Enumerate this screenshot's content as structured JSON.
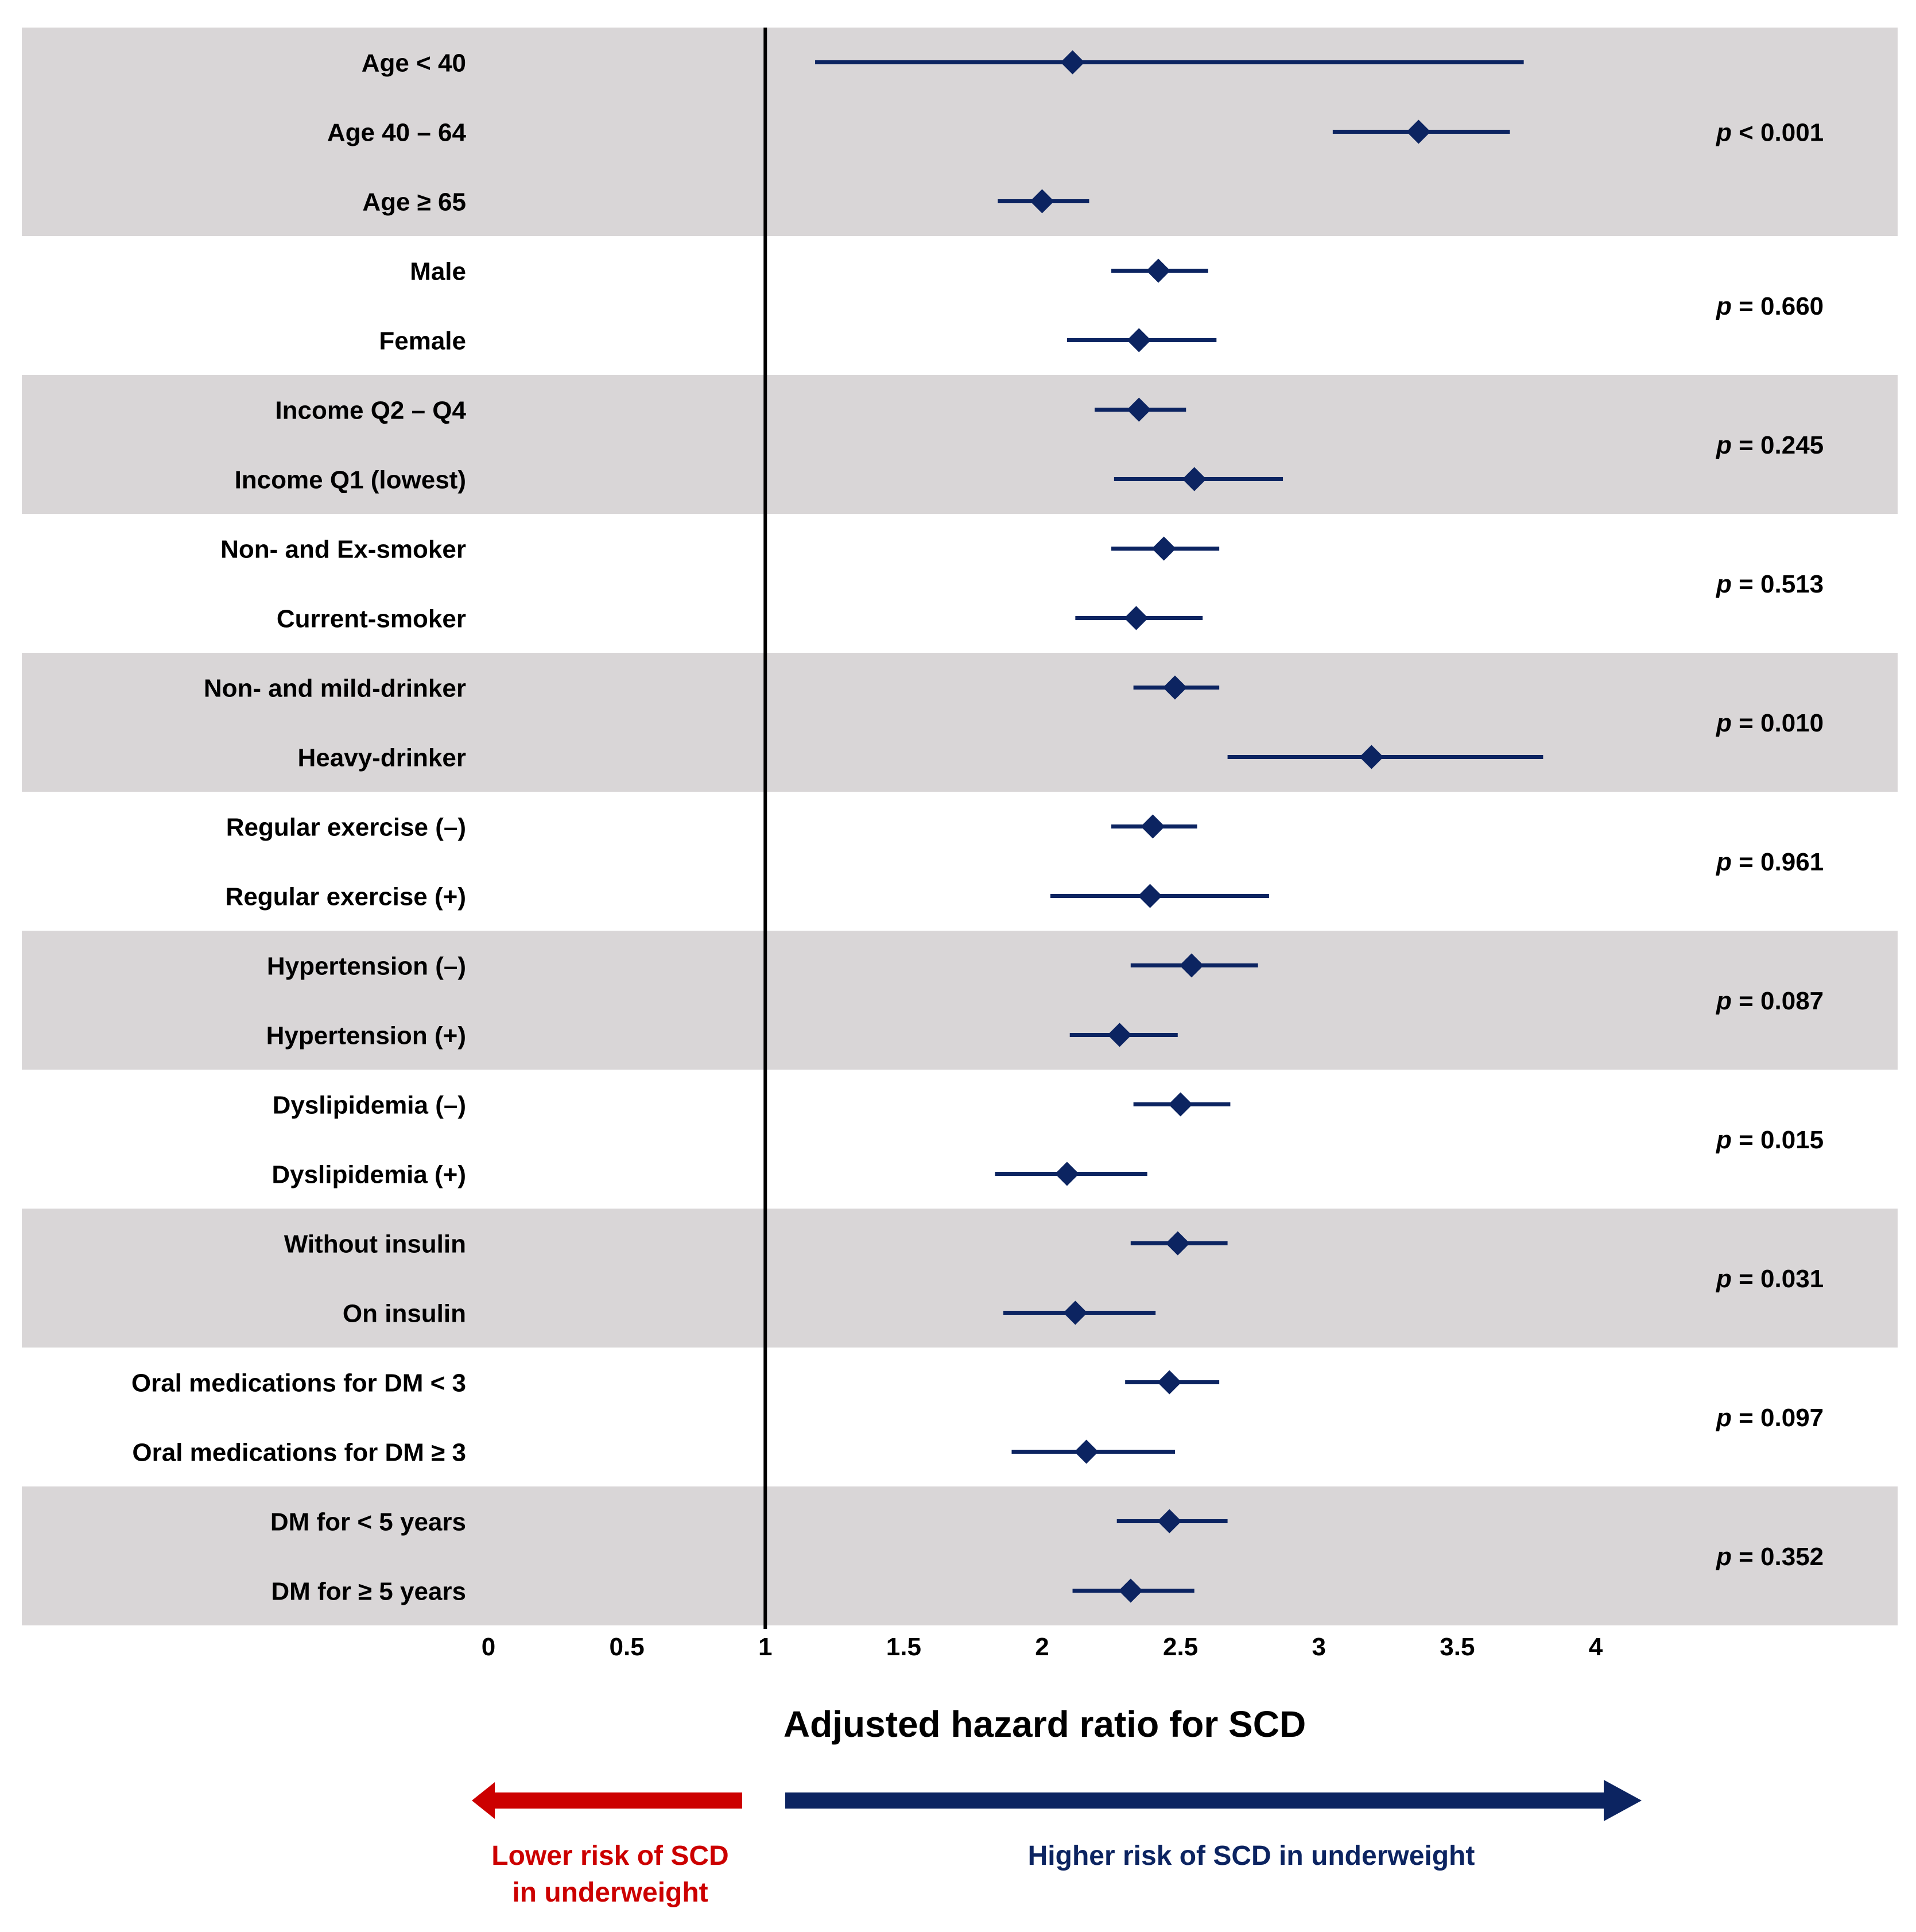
{
  "chart_data": {
    "type": "forest",
    "xlabel": "Adjusted hazard ratio for SCD",
    "xlim": [
      0,
      4
    ],
    "reference_line": 1,
    "x_ticks": [
      "0",
      "0.5",
      "1",
      "1.5",
      "2",
      "2.5",
      "3",
      "3.5",
      "4"
    ],
    "x_tick_values": [
      0,
      0.5,
      1,
      1.5,
      2,
      2.5,
      3,
      3.5,
      4
    ],
    "colors": {
      "band": "#d9d6d7",
      "marker": "#0c2461",
      "reference": "#000000",
      "lower_arrow": "#cc0000",
      "higher_arrow": "#0c2461"
    },
    "groups": [
      {
        "p_label": "p",
        "p_value": "< 0.001",
        "shaded": true,
        "rows": [
          {
            "label": "Age < 40",
            "hr": 2.11,
            "lo": 1.18,
            "hi": 3.74
          },
          {
            "label": "Age 40 – 64",
            "hr": 3.36,
            "lo": 3.05,
            "hi": 3.69
          },
          {
            "label": "Age ≥ 65",
            "hr": 2.0,
            "lo": 1.84,
            "hi": 2.17
          }
        ]
      },
      {
        "p_label": "p",
        "p_value": "= 0.660",
        "shaded": false,
        "rows": [
          {
            "label": "Male",
            "hr": 2.42,
            "lo": 2.25,
            "hi": 2.6
          },
          {
            "label": "Female",
            "hr": 2.35,
            "lo": 2.09,
            "hi": 2.63
          }
        ]
      },
      {
        "p_label": "p",
        "p_value": "= 0.245",
        "shaded": true,
        "rows": [
          {
            "label": "Income Q2 – Q4",
            "hr": 2.35,
            "lo": 2.19,
            "hi": 2.52
          },
          {
            "label": "Income Q1 (lowest)",
            "hr": 2.55,
            "lo": 2.26,
            "hi": 2.87
          }
        ]
      },
      {
        "p_label": "p",
        "p_value": "= 0.513",
        "shaded": false,
        "rows": [
          {
            "label": "Non- and Ex-smoker",
            "hr": 2.44,
            "lo": 2.25,
            "hi": 2.64
          },
          {
            "label": "Current-smoker",
            "hr": 2.34,
            "lo": 2.12,
            "hi": 2.58
          }
        ]
      },
      {
        "p_label": "p",
        "p_value": "= 0.010",
        "shaded": true,
        "rows": [
          {
            "label": "Non- and mild-drinker",
            "hr": 2.48,
            "lo": 2.33,
            "hi": 2.64
          },
          {
            "label": "Heavy-drinker",
            "hr": 3.19,
            "lo": 2.67,
            "hi": 3.81
          }
        ]
      },
      {
        "p_label": "p",
        "p_value": "= 0.961",
        "shaded": false,
        "rows": [
          {
            "label": "Regular exercise (–)",
            "hr": 2.4,
            "lo": 2.25,
            "hi": 2.56
          },
          {
            "label": "Regular exercise (+)",
            "hr": 2.39,
            "lo": 2.03,
            "hi": 2.82
          }
        ]
      },
      {
        "p_label": "p",
        "p_value": "= 0.087",
        "shaded": true,
        "rows": [
          {
            "label": "Hypertension (–)",
            "hr": 2.54,
            "lo": 2.32,
            "hi": 2.78
          },
          {
            "label": "Hypertension (+)",
            "hr": 2.28,
            "lo": 2.1,
            "hi": 2.49
          }
        ]
      },
      {
        "p_label": "p",
        "p_value": "= 0.015",
        "shaded": false,
        "rows": [
          {
            "label": "Dyslipidemia (–)",
            "hr": 2.5,
            "lo": 2.33,
            "hi": 2.68
          },
          {
            "label": "Dyslipidemia (+)",
            "hr": 2.09,
            "lo": 1.83,
            "hi": 2.38
          }
        ]
      },
      {
        "p_label": "p",
        "p_value": "= 0.031",
        "shaded": true,
        "rows": [
          {
            "label": "Without insulin",
            "hr": 2.49,
            "lo": 2.32,
            "hi": 2.67
          },
          {
            "label": "On insulin",
            "hr": 2.12,
            "lo": 1.86,
            "hi": 2.41
          }
        ]
      },
      {
        "p_label": "p",
        "p_value": "= 0.097",
        "shaded": false,
        "rows": [
          {
            "label": "Oral medications for DM < 3",
            "hr": 2.46,
            "lo": 2.3,
            "hi": 2.64
          },
          {
            "label": "Oral medications for DM ≥ 3",
            "hr": 2.16,
            "lo": 1.89,
            "hi": 2.48
          }
        ]
      },
      {
        "p_label": "p",
        "p_value": "= 0.352",
        "shaded": true,
        "rows": [
          {
            "label": "DM for < 5 years",
            "hr": 2.46,
            "lo": 2.27,
            "hi": 2.67
          },
          {
            "label": "DM for ≥ 5 years",
            "hr": 2.32,
            "lo": 2.11,
            "hi": 2.55
          }
        ]
      }
    ]
  },
  "direction": {
    "lower_line1": "Lower risk of SCD",
    "lower_line2": "in underweight",
    "higher": "Higher risk of SCD in underweight"
  }
}
